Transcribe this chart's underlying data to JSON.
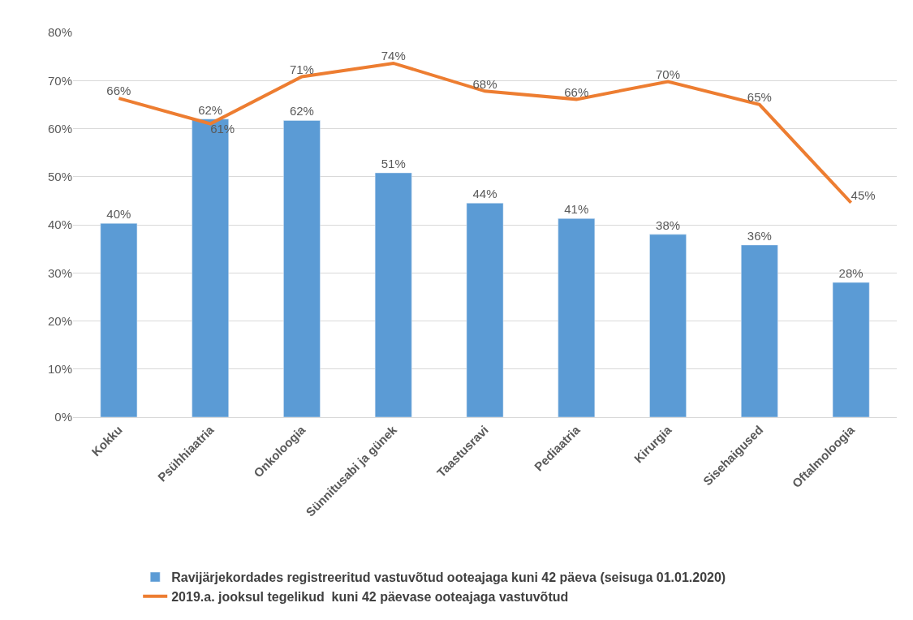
{
  "chart_data": {
    "type": "bar",
    "categories": [
      "Kokku",
      "Psühhiaatria",
      "Onkoloogia",
      "Sünnitusabi ja günek",
      "Taastusravi",
      "Pediaatria",
      "Kirurgia",
      "Sisehaigused",
      "Oftalmoloogia"
    ],
    "series": [
      {
        "name": "Ravijärjekordades registreeritud vastuvõtud ooteajaga kuni 42 päeva (seisuga 01.01.2020)",
        "color": "#5b9bd5",
        "values": [
          40.3,
          62,
          61.7,
          50.8,
          44.5,
          41.3,
          38,
          35.8,
          28
        ],
        "value_labels": [
          "40%",
          "62%",
          "62%",
          "51%",
          "44%",
          "41%",
          "38%",
          "36%",
          "28%"
        ]
      },
      {
        "name": "2019.a. jooksul tegelikud  kuni 42 päevase ooteajaga vastuvõtud",
        "color": "#ed7d31",
        "type": "line",
        "values": [
          66.3,
          61,
          70.8,
          73.6,
          67.8,
          66.1,
          69.8,
          65,
          44.6
        ],
        "value_labels": [
          "66%",
          "61%",
          "71%",
          "74%",
          "68%",
          "66%",
          "70%",
          "65%",
          "45%"
        ]
      }
    ],
    "ylim": [
      0,
      80
    ],
    "yticks": [
      {
        "value": 0,
        "label": "0%"
      },
      {
        "value": 10,
        "label": "10%"
      },
      {
        "value": 20,
        "label": "20%"
      },
      {
        "value": 30,
        "label": "30%"
      },
      {
        "value": 40,
        "label": "40%"
      },
      {
        "value": 50,
        "label": "50%"
      },
      {
        "value": 60,
        "label": "60%"
      },
      {
        "value": 70,
        "label": "70%"
      },
      {
        "value": 80,
        "label": "80%"
      }
    ],
    "grid": "y",
    "legend": "bottom",
    "marker": "none",
    "line_style": "solid"
  }
}
